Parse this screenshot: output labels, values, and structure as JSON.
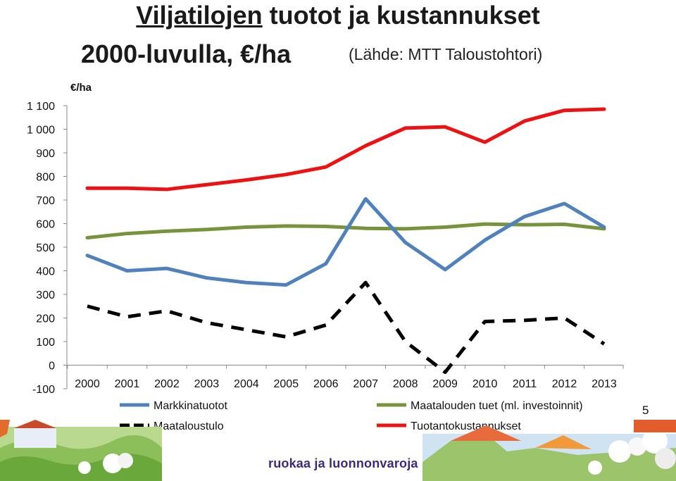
{
  "title": {
    "part1_underlined": "Viljatilojen",
    "part1_rest": " tuotot ja kustannukset",
    "line2": "2000-luvulla, €/ha",
    "source": "(Lähde: MTT Taloustohtori)"
  },
  "unit_label": "€/ha",
  "page_number": "5",
  "footer_text": "ruokaa ja luonnonvaroja",
  "colors": {
    "markkinatuotot": "#4f81bd",
    "tuet": "#77933c",
    "maataloustulo": "#000000",
    "kustannukset": "#ee1111"
  },
  "chart_data": {
    "type": "line",
    "title": "Viljatilojen tuotot ja kustannukset 2000-luvulla, €/ha",
    "ylabel": "€/ha",
    "xlabel": "",
    "ylim": [
      -100,
      1100
    ],
    "yticks": [
      -100,
      0,
      100,
      200,
      300,
      400,
      500,
      600,
      700,
      800,
      900,
      1000,
      1100
    ],
    "ytick_labels": [
      "-100",
      "0",
      "100",
      "200",
      "300",
      "400",
      "500",
      "600",
      "700",
      "800",
      "900",
      "1 000",
      "1 100"
    ],
    "categories": [
      "2000",
      "2001",
      "2002",
      "2003",
      "2004",
      "2005",
      "2006",
      "2007",
      "2008",
      "2009",
      "2010",
      "2011",
      "2012",
      "2013"
    ],
    "grid": false,
    "legend_position": "bottom",
    "series": [
      {
        "name": "Markkinatuotot",
        "key": "markkinatuotot",
        "style": "solid",
        "values": [
          465,
          400,
          410,
          370,
          350,
          340,
          430,
          705,
          520,
          405,
          530,
          630,
          685,
          585
        ]
      },
      {
        "name": "Maatalouden tuet (ml. investoinnit)",
        "key": "tuet",
        "style": "solid",
        "values": [
          540,
          558,
          568,
          575,
          585,
          590,
          588,
          580,
          578,
          585,
          598,
          595,
          597,
          578
        ]
      },
      {
        "name": "Maataloustulo",
        "key": "maataloustulo",
        "style": "dashed",
        "values": [
          250,
          205,
          230,
          180,
          150,
          120,
          170,
          350,
          100,
          -30,
          185,
          190,
          200,
          90
        ]
      },
      {
        "name": "Tuotantokustannukset",
        "key": "kustannukset",
        "style": "solid",
        "values": [
          750,
          750,
          745,
          765,
          785,
          808,
          840,
          930,
          1005,
          1010,
          945,
          1035,
          1080,
          1085
        ]
      }
    ]
  }
}
